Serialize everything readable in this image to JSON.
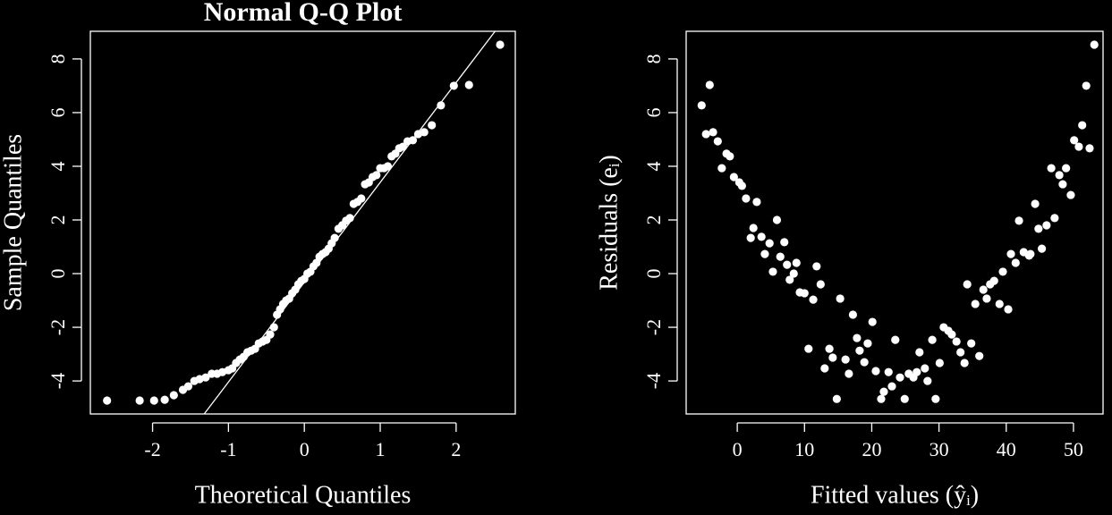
{
  "chart_data": [
    {
      "type": "scatter",
      "title": "Normal Q-Q Plot",
      "x_label": "Theoretical Quantiles",
      "y_label": "Sample Quantiles",
      "color": "#ffffff",
      "xlim": [
        -2.82,
        2.78
      ],
      "ylim": [
        -5.23,
        9.03
      ],
      "xticks": [
        -2,
        -1,
        0,
        1,
        2
      ],
      "yticks": [
        -4,
        -2,
        0,
        2,
        4,
        6,
        8
      ],
      "reference_line": {
        "intercept": -0.32,
        "slope": 3.72
      },
      "x": [
        -2.6,
        -2.17,
        -1.98,
        -1.84,
        -1.72,
        -1.6,
        -1.53,
        -1.45,
        -1.38,
        -1.3,
        -1.22,
        -1.15,
        -1.08,
        -1.0,
        -0.95,
        -0.9,
        -0.85,
        -0.8,
        -0.75,
        -0.7,
        -0.65,
        -0.6,
        -0.55,
        -0.5,
        -0.45,
        -0.4,
        -0.36,
        -0.32,
        -0.28,
        -0.24,
        -0.2,
        -0.16,
        -0.12,
        -0.08,
        -0.04,
        0.0,
        0.04,
        0.08,
        0.12,
        0.16,
        0.2,
        0.24,
        0.28,
        0.32,
        0.36,
        0.4,
        0.45,
        0.5,
        0.55,
        0.6,
        0.65,
        0.7,
        0.75,
        0.8,
        0.85,
        0.9,
        0.95,
        1.0,
        1.05,
        1.1,
        1.15,
        1.2,
        1.25,
        1.3,
        1.36,
        1.43,
        1.5,
        1.58,
        1.68,
        1.8,
        1.97,
        2.17,
        2.58
      ],
      "values": [
        -4.73,
        -4.73,
        -4.73,
        -4.7,
        -4.53,
        -4.33,
        -4.2,
        -4.0,
        -3.93,
        -3.87,
        -3.73,
        -3.73,
        -3.67,
        -3.6,
        -3.53,
        -3.33,
        -3.2,
        -3.1,
        -2.93,
        -2.87,
        -2.8,
        -2.6,
        -2.53,
        -2.47,
        -2.27,
        -2.0,
        -1.53,
        -1.33,
        -1.13,
        -1.0,
        -0.93,
        -0.73,
        -0.6,
        -0.4,
        -0.27,
        -0.2,
        0.0,
        0.07,
        0.27,
        0.4,
        0.63,
        0.73,
        0.8,
        0.93,
        1.13,
        1.33,
        1.67,
        1.8,
        1.97,
        2.07,
        2.6,
        2.67,
        2.8,
        3.33,
        3.4,
        3.6,
        3.67,
        3.93,
        3.93,
        4.0,
        4.37,
        4.47,
        4.67,
        4.73,
        4.93,
        4.97,
        5.2,
        5.27,
        5.53,
        6.27,
        7.0,
        7.03,
        8.53
      ]
    },
    {
      "type": "scatter",
      "x_label": "Fitted values (ŷᵢ)",
      "y_label": "Residuals (eᵢ)",
      "color": "#ffffff",
      "xlim": [
        -7.6,
        54.4
      ],
      "ylim": [
        -5.23,
        9.03
      ],
      "xticks": [
        0,
        10,
        20,
        30,
        40,
        50
      ],
      "yticks": [
        -4,
        -2,
        0,
        2,
        4,
        6,
        8
      ],
      "x": [
        -5.3,
        -4.1,
        -4.65,
        -3.6,
        -2.9,
        -2.3,
        -1.6,
        -1.1,
        -0.5,
        0.3,
        0.7,
        1.3,
        2.9,
        2.4,
        2.0,
        3.6,
        4.1,
        4.8,
        5.9,
        5.3,
        7.0,
        6.4,
        7.4,
        7.8,
        8.8,
        8.4,
        9.3,
        10.0,
        11.3,
        11.8,
        12.4,
        15.3,
        10.6,
        13.0,
        13.7,
        14.2,
        14.8,
        16.1,
        17.2,
        16.6,
        17.8,
        18.2,
        18.9,
        19.4,
        20.1,
        20.6,
        21.4,
        21.8,
        22.5,
        23.0,
        23.5,
        24.2,
        24.9,
        25.5,
        26.2,
        26.7,
        27.1,
        27.9,
        28.3,
        29.0,
        29.5,
        30.1,
        30.7,
        31.4,
        31.9,
        32.6,
        33.2,
        33.8,
        34.2,
        34.8,
        35.4,
        36.0,
        36.6,
        37.1,
        37.6,
        38.2,
        39.0,
        39.5,
        40.3,
        40.7,
        41.4,
        41.9,
        42.6,
        43.4,
        43.6,
        44.3,
        44.8,
        45.3,
        46.0,
        46.7,
        47.2,
        47.9,
        48.4,
        48.9,
        49.6,
        50.1,
        50.8,
        51.3,
        51.9,
        52.4,
        53.1
      ],
      "values": [
        6.27,
        7.03,
        5.2,
        5.27,
        4.93,
        3.93,
        4.47,
        4.37,
        3.6,
        3.4,
        3.27,
        2.8,
        2.67,
        1.7,
        1.33,
        1.37,
        0.73,
        1.13,
        2.0,
        0.07,
        1.17,
        0.63,
        0.33,
        -0.23,
        0.4,
        0.0,
        -0.7,
        -0.73,
        -0.97,
        0.27,
        -0.4,
        -0.93,
        -2.8,
        -3.53,
        -2.8,
        -3.13,
        -4.67,
        -3.2,
        -1.53,
        -3.73,
        -2.4,
        -2.87,
        -3.3,
        -2.6,
        -1.8,
        -3.63,
        -4.67,
        -4.4,
        -3.67,
        -4.2,
        -2.47,
        -3.87,
        -4.67,
        -3.73,
        -3.87,
        -3.67,
        -2.93,
        -3.53,
        -4.0,
        -2.47,
        -4.67,
        -3.33,
        -2.0,
        -2.13,
        -2.27,
        -2.53,
        -2.93,
        -3.33,
        -0.4,
        -2.6,
        -1.13,
        -3.07,
        -0.6,
        -0.93,
        -0.4,
        -0.27,
        -1.13,
        0.07,
        -1.33,
        0.73,
        0.4,
        1.97,
        0.8,
        0.67,
        0.73,
        2.6,
        1.67,
        0.93,
        1.8,
        3.93,
        2.07,
        3.67,
        3.33,
        3.93,
        2.93,
        4.97,
        4.73,
        5.53,
        7.0,
        4.67,
        8.53
      ]
    }
  ]
}
